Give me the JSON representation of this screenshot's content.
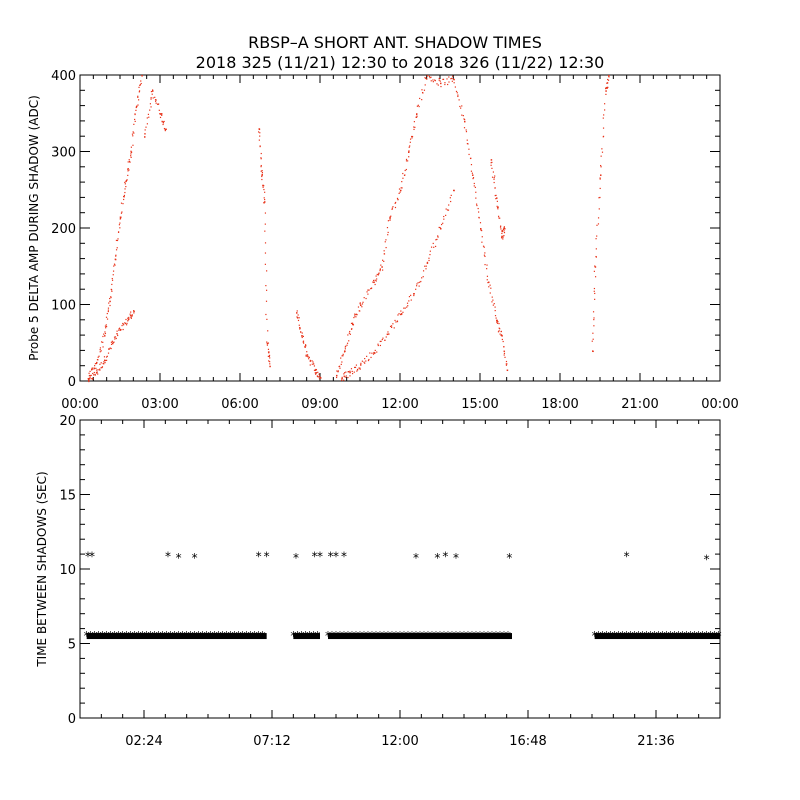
{
  "figure": {
    "title_line1": "RBSP–A SHORT ANT. SHADOW TIMES",
    "title_line2": "2018 325 (11/21) 12:30 to 2018 326 (11/22) 12:30"
  },
  "colors": {
    "top_points": "#e8331a",
    "bottom_points": "#000000",
    "axes": "#000000"
  },
  "chart_data": [
    {
      "type": "scatter",
      "ylabel": "Probe 5 DELTA AMP DURING SHADOW (ADC)",
      "xlim": [
        0,
        24
      ],
      "ylim": [
        0,
        400
      ],
      "x_unit": "hours",
      "xticks": [
        0,
        3,
        6,
        9,
        12,
        15,
        18,
        21,
        24
      ],
      "xtick_labels": [
        "00:00",
        "03:00",
        "06:00",
        "09:00",
        "12:00",
        "15:00",
        "18:00",
        "21:00",
        "00:00"
      ],
      "yticks": [
        0,
        100,
        200,
        300,
        400
      ],
      "ytick_labels": [
        "0",
        "100",
        "200",
        "300",
        "400"
      ],
      "series": [
        {
          "points": [
            [
              0.3,
              2
            ],
            [
              0.6,
              12
            ],
            [
              0.9,
              28
            ],
            [
              1.2,
              50
            ],
            [
              1.5,
              68
            ],
            [
              1.8,
              82
            ],
            [
              2.0,
              92
            ]
          ]
        },
        {
          "points": [
            [
              0.3,
              4
            ],
            [
              0.6,
              25
            ],
            [
              0.9,
              60
            ],
            [
              1.1,
              105
            ],
            [
              1.3,
              160
            ],
            [
              1.5,
              215
            ],
            [
              1.7,
              262
            ],
            [
              1.9,
              300
            ],
            [
              2.1,
              360
            ],
            [
              2.3,
              400
            ]
          ]
        },
        {
          "points": [
            [
              2.4,
              320
            ],
            [
              2.7,
              380
            ],
            [
              3.0,
              350
            ],
            [
              3.2,
              330
            ]
          ]
        },
        {
          "points": [
            [
              6.7,
              330
            ],
            [
              6.8,
              270
            ],
            [
              6.9,
              235
            ],
            [
              7.0,
              50
            ],
            [
              7.1,
              20
            ]
          ]
        },
        {
          "points": [
            [
              8.1,
              90
            ],
            [
              8.3,
              60
            ],
            [
              8.5,
              35
            ],
            [
              8.8,
              15
            ],
            [
              9.0,
              5
            ]
          ]
        },
        {
          "points": [
            [
              9.8,
              4
            ],
            [
              10.1,
              12
            ],
            [
              10.5,
              22
            ],
            [
              11.0,
              38
            ],
            [
              11.5,
              62
            ],
            [
              12.0,
              88
            ],
            [
              12.5,
              115
            ],
            [
              13.0,
              155
            ],
            [
              13.5,
              200
            ],
            [
              14.0,
              250
            ]
          ]
        },
        {
          "points": [
            [
              9.6,
              8
            ],
            [
              9.9,
              40
            ],
            [
              10.2,
              75
            ],
            [
              10.5,
              100
            ],
            [
              11.0,
              130
            ],
            [
              11.3,
              150
            ],
            [
              11.6,
              215
            ],
            [
              12.0,
              250
            ],
            [
              12.3,
              300
            ],
            [
              12.6,
              350
            ],
            [
              13.0,
              400
            ],
            [
              13.5,
              390
            ],
            [
              14.0,
              395
            ],
            [
              14.4,
              340
            ],
            [
              14.7,
              270
            ],
            [
              15.0,
              200
            ],
            [
              15.3,
              130
            ],
            [
              15.6,
              80
            ],
            [
              15.8,
              60
            ],
            [
              16.0,
              15
            ]
          ]
        },
        {
          "points": [
            [
              15.4,
              290
            ],
            [
              15.6,
              240
            ],
            [
              15.8,
              190
            ],
            [
              15.9,
              200
            ]
          ]
        },
        {
          "points": [
            [
              19.2,
              40
            ],
            [
              19.3,
              150
            ],
            [
              19.5,
              270
            ],
            [
              19.7,
              380
            ],
            [
              19.8,
              400
            ]
          ]
        }
      ]
    },
    {
      "type": "scatter",
      "ylabel": "TIME BETWEEN SHADOWS (SEC)",
      "xlim": [
        0,
        24
      ],
      "ylim": [
        0,
        20
      ],
      "x_unit": "hours",
      "xticks": [
        2.4,
        7.2,
        12.0,
        16.8,
        21.6
      ],
      "xtick_labels": [
        "02:24",
        "07:12",
        "12:00",
        "16:48",
        "21:36"
      ],
      "yticks": [
        0,
        5,
        10,
        15,
        20
      ],
      "ytick_labels": [
        "0",
        "5",
        "10",
        "15",
        "20"
      ],
      "bands": [
        {
          "x_start": 0.25,
          "x_end": 7.0,
          "y": 5.5
        },
        {
          "x_start": 8.0,
          "x_end": 9.0,
          "y": 5.5
        },
        {
          "x_start": 9.3,
          "x_end": 16.2,
          "y": 5.5
        },
        {
          "x_start": 19.3,
          "x_end": 24.0,
          "y": 5.5
        }
      ],
      "outliers": [
        [
          0.3,
          10.9
        ],
        [
          0.45,
          10.9
        ],
        [
          3.3,
          10.9
        ],
        [
          3.7,
          10.8
        ],
        [
          4.3,
          10.8
        ],
        [
          6.7,
          10.9
        ],
        [
          7.0,
          10.9
        ],
        [
          8.1,
          10.8
        ],
        [
          8.8,
          10.9
        ],
        [
          9.0,
          10.9
        ],
        [
          9.4,
          10.9
        ],
        [
          9.6,
          10.9
        ],
        [
          9.9,
          10.9
        ],
        [
          12.6,
          10.8
        ],
        [
          13.4,
          10.8
        ],
        [
          13.7,
          10.9
        ],
        [
          14.1,
          10.8
        ],
        [
          16.1,
          10.8
        ],
        [
          20.5,
          10.9
        ],
        [
          23.5,
          10.7
        ]
      ]
    }
  ]
}
